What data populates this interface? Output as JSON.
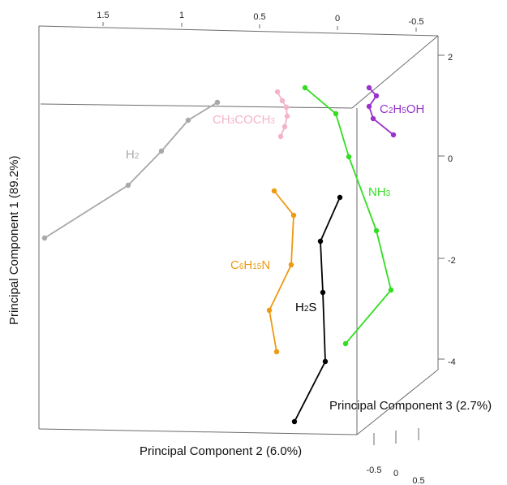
{
  "chart_data": {
    "type": "scatter",
    "projection": "3d",
    "axes": {
      "x": {
        "label": "Principal Component 2 (6.0%)",
        "ticks": [
          "1.5",
          "1",
          "0.5",
          "0",
          "-0.5"
        ]
      },
      "y": {
        "label": "Principal Component 1 (89.2%)",
        "ticks": [
          "2",
          "0",
          "-2",
          "-4"
        ]
      },
      "z": {
        "label": "Principal Component 3 (2.7%)",
        "ticks": [
          "-0.5",
          "0",
          "0.5"
        ]
      }
    },
    "series": [
      {
        "name": "H2",
        "display": {
          "base": "H",
          "sub": "2",
          "tail": ""
        },
        "color": "#a8a8a8"
      },
      {
        "name": "CH3COCH3",
        "display": {
          "base": "CH",
          "sub": "3",
          "tail": "COCH",
          "sub2": "3"
        },
        "color": "#f4b4c8"
      },
      {
        "name": "NH3",
        "display": {
          "base": "NH",
          "sub": "3",
          "tail": ""
        },
        "color": "#33dd22"
      },
      {
        "name": "C2H5OH",
        "display": {
          "base": "C",
          "sub": "2",
          "tail": "H",
          "sub2": "5",
          "tail2": "OH"
        },
        "color": "#9933cc"
      },
      {
        "name": "C6H15N",
        "display": {
          "base": "C",
          "sub": "6",
          "tail": "H",
          "sub2": "15",
          "tail2": "N"
        },
        "color": "#ee9911"
      },
      {
        "name": "H2S",
        "display": {
          "base": "H",
          "sub": "2",
          "tail": "S"
        },
        "color": "#000000"
      }
    ],
    "grid": false,
    "legend": "none"
  }
}
